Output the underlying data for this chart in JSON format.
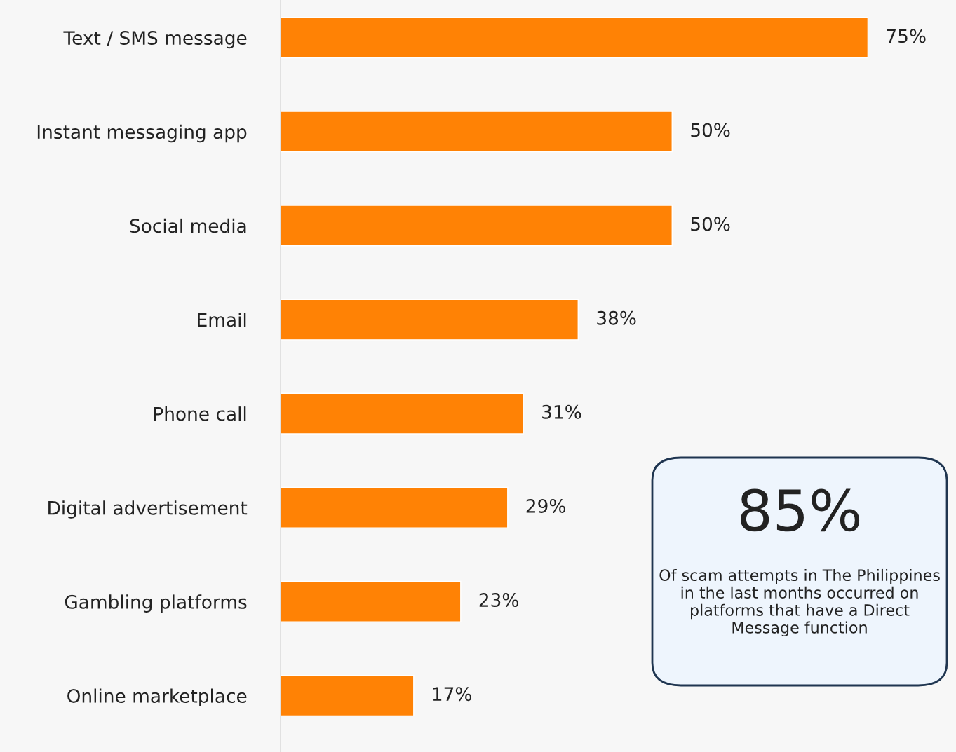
{
  "chart_data": {
    "type": "bar",
    "orientation": "horizontal",
    "categories": [
      "Text / SMS message",
      "Instant messaging app",
      "Social media",
      "Email",
      "Phone call",
      "Digital advertisement",
      "Gambling platforms",
      "Online marketplace"
    ],
    "values": [
      75,
      50,
      50,
      38,
      31,
      29,
      23,
      17
    ],
    "value_labels": [
      "75%",
      "50%",
      "50%",
      "38%",
      "31%",
      "29%",
      "23%",
      "17%"
    ],
    "color": "#ff8205",
    "grid": false,
    "legend": false,
    "annotations": [
      "85%",
      "Of scam attempts in The Philippines in the last months occurred on platforms that have a Direct Message function"
    ]
  }
}
